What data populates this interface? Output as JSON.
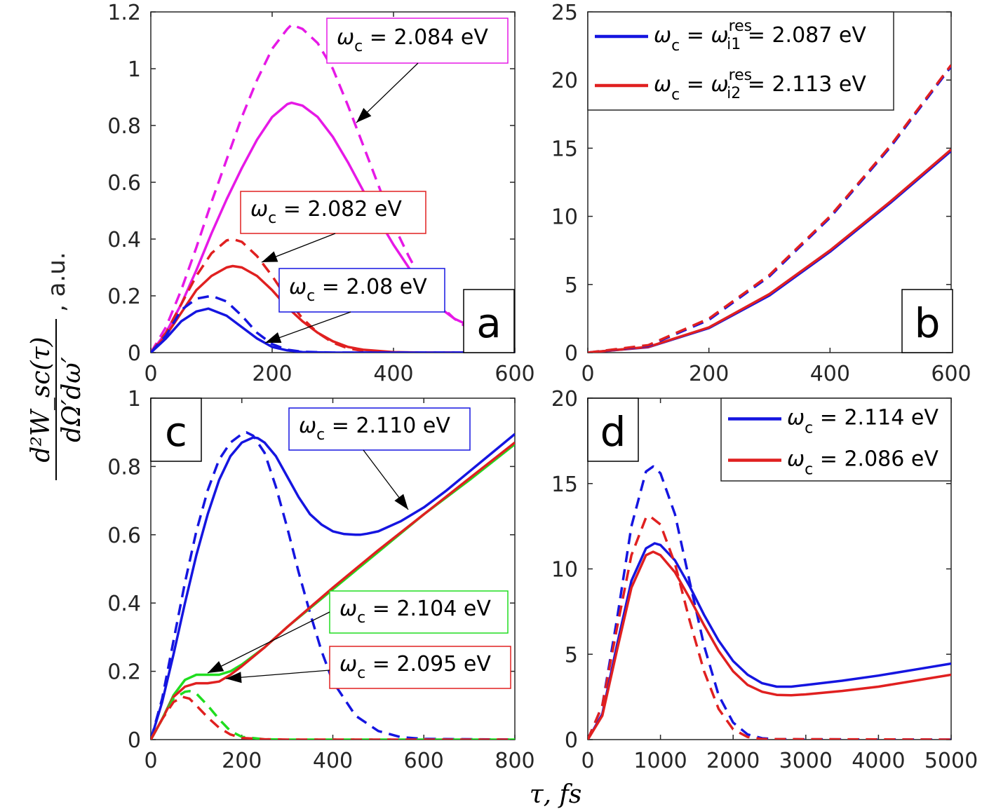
{
  "figure": {
    "xlabel": "τ, fs",
    "ylabel_numerator": "d²W_sc(τ)",
    "ylabel_denominator": "dΩ′dω′",
    "ylabel_suffix": ", a.u."
  },
  "chart_data": [
    {
      "panel": "a",
      "type": "line",
      "xlim": [
        0,
        600
      ],
      "ylim": [
        0,
        1.2
      ],
      "xticks": [
        0,
        200,
        400,
        600
      ],
      "yticks": [
        0,
        0.2,
        0.4,
        0.6,
        0.8,
        1,
        1.2
      ],
      "yticklabels": [
        "0",
        "0.2",
        "0.4",
        "0.6",
        "0.8",
        "1",
        "1.2"
      ],
      "grid": false,
      "series": [
        {
          "label": "ω_c = 2.084 eV",
          "color": "#e619e6",
          "style": "dashed",
          "x": [
            0,
            25,
            50,
            75,
            100,
            125,
            150,
            175,
            200,
            225,
            232,
            250,
            275,
            300,
            325,
            350,
            375,
            400,
            425,
            450,
            475,
            500,
            520
          ],
          "y": [
            0,
            0.09,
            0.22,
            0.37,
            0.53,
            0.68,
            0.83,
            0.96,
            1.07,
            1.14,
            1.155,
            1.14,
            1.09,
            1.0,
            0.87,
            0.73,
            0.59,
            0.45,
            0.34,
            0.24,
            0.17,
            0.12,
            0.09
          ]
        },
        {
          "label": "ω_c = 2.084 eV",
          "color": "#e619e6",
          "style": "solid",
          "x": [
            0,
            25,
            50,
            75,
            100,
            125,
            150,
            175,
            200,
            225,
            232,
            250,
            275,
            300,
            325,
            350,
            375,
            400,
            425,
            450,
            475,
            500,
            520
          ],
          "y": [
            0,
            0.07,
            0.17,
            0.29,
            0.42,
            0.54,
            0.65,
            0.75,
            0.83,
            0.875,
            0.88,
            0.87,
            0.83,
            0.76,
            0.67,
            0.57,
            0.47,
            0.38,
            0.3,
            0.22,
            0.16,
            0.12,
            0.1
          ]
        },
        {
          "label": "ω_c = 2.082 eV",
          "color": "#e02020",
          "style": "dashed",
          "x": [
            0,
            25,
            50,
            75,
            100,
            125,
            135,
            150,
            175,
            200,
            225,
            250,
            275,
            300,
            325,
            350,
            400,
            450,
            500,
            600
          ],
          "y": [
            0,
            0.07,
            0.17,
            0.27,
            0.35,
            0.395,
            0.4,
            0.39,
            0.34,
            0.27,
            0.19,
            0.12,
            0.07,
            0.035,
            0.015,
            0.006,
            0.001,
            0,
            0,
            0
          ]
        },
        {
          "label": "ω_c = 2.082 eV",
          "color": "#e02020",
          "style": "solid",
          "x": [
            0,
            25,
            50,
            75,
            100,
            125,
            135,
            150,
            175,
            200,
            225,
            250,
            275,
            300,
            325,
            350,
            400,
            450,
            500,
            600
          ],
          "y": [
            0,
            0.06,
            0.14,
            0.22,
            0.27,
            0.3,
            0.305,
            0.3,
            0.27,
            0.22,
            0.16,
            0.11,
            0.07,
            0.04,
            0.02,
            0.01,
            0.002,
            0,
            0,
            0
          ]
        },
        {
          "label": "ω_c = 2.08 eV",
          "color": "#1515e0",
          "style": "dashed",
          "x": [
            0,
            25,
            50,
            75,
            100,
            125,
            150,
            175,
            200,
            225,
            250,
            300,
            400,
            600
          ],
          "y": [
            0,
            0.06,
            0.15,
            0.19,
            0.2,
            0.18,
            0.13,
            0.07,
            0.03,
            0.01,
            0.003,
            0,
            0,
            0
          ]
        },
        {
          "label": "ω_c = 2.08 eV",
          "color": "#1515e0",
          "style": "solid",
          "x": [
            0,
            25,
            50,
            75,
            95,
            125,
            150,
            175,
            200,
            225,
            250,
            300,
            400,
            600
          ],
          "y": [
            0,
            0.05,
            0.11,
            0.145,
            0.155,
            0.13,
            0.09,
            0.05,
            0.02,
            0.008,
            0.002,
            0,
            0,
            0
          ]
        }
      ],
      "legend_boxes": [
        {
          "text": "ω_c = 2.084 eV",
          "color": "#e619e6"
        },
        {
          "text": "ω_c = 2.082 eV",
          "color": "#e02020"
        },
        {
          "text": "ω_c = 2.08 eV",
          "color": "#1515e0"
        }
      ]
    },
    {
      "panel": "b",
      "type": "line",
      "xlim": [
        0,
        600
      ],
      "ylim": [
        0,
        25
      ],
      "xticks": [
        0,
        200,
        400,
        600
      ],
      "yticks": [
        0,
        5,
        10,
        15,
        20,
        25
      ],
      "yticklabels": [
        "0",
        "5",
        "10",
        "15",
        "20",
        "25"
      ],
      "grid": false,
      "legend": "top-left",
      "series": [
        {
          "label": "ω_c = ω_i1^res = 2.087 eV",
          "color": "#1515e0",
          "style": "solid",
          "x": [
            0,
            100,
            200,
            300,
            400,
            500,
            600
          ],
          "y": [
            0,
            0.4,
            1.8,
            4.2,
            7.4,
            11.0,
            14.8
          ]
        },
        {
          "label": "ω_c = ω_i2^res = 2.113 eV",
          "color": "#e02020",
          "style": "solid",
          "x": [
            0,
            100,
            200,
            300,
            400,
            500,
            600
          ],
          "y": [
            0,
            0.42,
            1.85,
            4.3,
            7.5,
            11.1,
            14.9
          ]
        },
        {
          "label": "ω_c = ω_i1^res = 2.087 eV",
          "color": "#1515e0",
          "style": "dashed",
          "x": [
            0,
            100,
            200,
            300,
            400,
            500,
            600
          ],
          "y": [
            0,
            0.5,
            2.4,
            5.6,
            9.9,
            15.1,
            21.0
          ]
        },
        {
          "label": "ω_c = ω_i2^res = 2.113 eV",
          "color": "#e02020",
          "style": "dashed",
          "x": [
            0,
            100,
            200,
            300,
            400,
            500,
            600
          ],
          "y": [
            0,
            0.55,
            2.5,
            5.7,
            10.0,
            15.2,
            21.1
          ]
        }
      ],
      "legend_entries": [
        {
          "pre": "ω",
          "sub": "c",
          "mid": " = ω",
          "sup": "res",
          "sub2": "i1",
          "post": " = 2.087 eV",
          "color": "#1515e0"
        },
        {
          "pre": "ω",
          "sub": "c",
          "mid": " = ω",
          "sup": "res",
          "sub2": "i2",
          "post": " = 2.113 eV",
          "color": "#e02020"
        }
      ]
    },
    {
      "panel": "c",
      "type": "line",
      "xlim": [
        0,
        800
      ],
      "ylim": [
        0,
        1
      ],
      "xticks": [
        0,
        200,
        400,
        600,
        800
      ],
      "yticks": [
        0,
        0.2,
        0.4,
        0.6,
        0.8,
        1
      ],
      "yticklabels": [
        "0",
        "0.2",
        "0.4",
        "0.6",
        "0.8",
        "1"
      ],
      "grid": false,
      "series": [
        {
          "label": "ω_c = 2.110 eV",
          "color": "#1515e0",
          "style": "dashed",
          "x": [
            0,
            25,
            50,
            75,
            100,
            125,
            150,
            175,
            200,
            210,
            225,
            250,
            275,
            300,
            325,
            350,
            375,
            400,
            450,
            500,
            550,
            600,
            800
          ],
          "y": [
            0,
            0.12,
            0.29,
            0.46,
            0.61,
            0.73,
            0.82,
            0.87,
            0.895,
            0.9,
            0.89,
            0.84,
            0.74,
            0.62,
            0.49,
            0.37,
            0.26,
            0.17,
            0.07,
            0.025,
            0.007,
            0.002,
            0
          ]
        },
        {
          "label": "ω_c = 2.110 eV",
          "color": "#1515e0",
          "style": "solid",
          "x": [
            0,
            25,
            50,
            75,
            100,
            125,
            150,
            175,
            200,
            225,
            235,
            250,
            275,
            300,
            325,
            350,
            375,
            400,
            425,
            450,
            460,
            475,
            500,
            550,
            600,
            650,
            700,
            750,
            800
          ],
          "y": [
            0,
            0.11,
            0.25,
            0.4,
            0.54,
            0.66,
            0.76,
            0.83,
            0.87,
            0.885,
            0.883,
            0.87,
            0.83,
            0.77,
            0.71,
            0.66,
            0.63,
            0.61,
            0.602,
            0.6,
            0.6,
            0.603,
            0.61,
            0.64,
            0.68,
            0.73,
            0.785,
            0.84,
            0.895
          ]
        },
        {
          "label": "ω_c = 2.104 eV",
          "color": "#20dd20",
          "style": "solid",
          "x": [
            0,
            25,
            50,
            75,
            100,
            125,
            150,
            175,
            200,
            250,
            300,
            400,
            500,
            600,
            700,
            800
          ],
          "y": [
            0,
            0.06,
            0.13,
            0.175,
            0.19,
            0.19,
            0.19,
            0.2,
            0.22,
            0.27,
            0.33,
            0.44,
            0.55,
            0.66,
            0.76,
            0.865
          ]
        },
        {
          "label": "ω_c = 2.095 eV",
          "color": "#e02020",
          "style": "solid",
          "x": [
            0,
            25,
            50,
            75,
            100,
            125,
            150,
            175,
            200,
            250,
            300,
            400,
            500,
            600,
            700,
            800
          ],
          "y": [
            0,
            0.06,
            0.125,
            0.155,
            0.165,
            0.165,
            0.17,
            0.19,
            0.215,
            0.27,
            0.33,
            0.445,
            0.555,
            0.66,
            0.765,
            0.87
          ]
        },
        {
          "label": "ω_c = 2.104 eV",
          "color": "#20dd20",
          "style": "dashed",
          "x": [
            0,
            25,
            50,
            75,
            85,
            100,
            125,
            150,
            175,
            200,
            250,
            300,
            800
          ],
          "y": [
            0,
            0.06,
            0.12,
            0.14,
            0.142,
            0.135,
            0.1,
            0.06,
            0.025,
            0.008,
            0.001,
            0,
            0
          ]
        },
        {
          "label": "ω_c = 2.095 eV",
          "color": "#e02020",
          "style": "dashed",
          "x": [
            0,
            25,
            50,
            70,
            85,
            100,
            125,
            150,
            175,
            200,
            250,
            300,
            800
          ],
          "y": [
            0,
            0.06,
            0.11,
            0.125,
            0.12,
            0.1,
            0.065,
            0.035,
            0.015,
            0.005,
            0.001,
            0,
            0
          ]
        }
      ],
      "legend_boxes": [
        {
          "text": "ω_c = 2.110 eV",
          "color": "#1515e0"
        },
        {
          "text": "ω_c = 2.104 eV",
          "color": "#20dd20"
        },
        {
          "text": "ω_c = 2.095 eV",
          "color": "#e02020"
        }
      ]
    },
    {
      "panel": "d",
      "type": "line",
      "xlim": [
        0,
        5000
      ],
      "ylim": [
        0,
        20
      ],
      "xticks": [
        0,
        1000,
        2000,
        3000,
        4000,
        5000
      ],
      "yticks": [
        0,
        5,
        10,
        15,
        20
      ],
      "yticklabels": [
        "0",
        "5",
        "10",
        "15",
        "20"
      ],
      "grid": false,
      "legend": "top-right",
      "series": [
        {
          "label": "ω_c = 2.114 eV",
          "color": "#1515e0",
          "style": "dashed",
          "x": [
            0,
            200,
            400,
            600,
            800,
            900,
            1000,
            1200,
            1400,
            1600,
            1800,
            2000,
            2200,
            2400,
            2600,
            5000
          ],
          "y": [
            0,
            2.0,
            7.0,
            12.5,
            15.7,
            16.0,
            15.6,
            13.2,
            9.3,
            5.5,
            2.6,
            1.0,
            0.3,
            0.08,
            0.02,
            0
          ]
        },
        {
          "label": "ω_c = 2.114 eV",
          "color": "#1515e0",
          "style": "solid",
          "x": [
            0,
            200,
            400,
            600,
            800,
            920,
            1000,
            1200,
            1400,
            1600,
            1800,
            2000,
            2200,
            2400,
            2600,
            2800,
            3000,
            3500,
            4000,
            4500,
            5000
          ],
          "y": [
            0,
            1.5,
            5.5,
            9.3,
            11.2,
            11.5,
            11.4,
            10.5,
            9.0,
            7.3,
            5.8,
            4.6,
            3.8,
            3.3,
            3.1,
            3.1,
            3.2,
            3.45,
            3.75,
            4.1,
            4.45
          ]
        },
        {
          "label": "ω_c = 2.086 eV",
          "color": "#e02020",
          "style": "dashed",
          "x": [
            0,
            200,
            400,
            600,
            800,
            850,
            1000,
            1200,
            1400,
            1600,
            1800,
            2000,
            2200,
            2400,
            5000
          ],
          "y": [
            0,
            2.0,
            6.5,
            10.8,
            13.0,
            13.1,
            12.6,
            10.3,
            7.0,
            4.0,
            1.8,
            0.6,
            0.15,
            0.03,
            0
          ]
        },
        {
          "label": "ω_c = 2.086 eV",
          "color": "#e02020",
          "style": "solid",
          "x": [
            0,
            200,
            400,
            600,
            800,
            900,
            1000,
            1200,
            1400,
            1600,
            1800,
            2000,
            2200,
            2400,
            2600,
            2800,
            3000,
            3500,
            4000,
            4500,
            5000
          ],
          "y": [
            0,
            1.4,
            5.2,
            8.9,
            10.8,
            11.0,
            10.8,
            9.8,
            8.3,
            6.7,
            5.2,
            4.0,
            3.2,
            2.8,
            2.62,
            2.6,
            2.65,
            2.85,
            3.1,
            3.45,
            3.8
          ]
        }
      ],
      "legend_entries": [
        {
          "pre": "ω",
          "sub": "c",
          "mid": "",
          "sup": "",
          "sub2": "",
          "post": " = 2.114 eV",
          "color": "#1515e0"
        },
        {
          "pre": "ω",
          "sub": "c",
          "mid": "",
          "sup": "",
          "sub2": "",
          "post": " = 2.086 eV",
          "color": "#e02020"
        }
      ]
    }
  ],
  "panel_labels": [
    "a",
    "b",
    "c",
    "d"
  ],
  "box_texts": {
    "a0_pre": "ω",
    "a0_sub": "c",
    "a0_post": " = 2.084 eV",
    "a1_pre": "ω",
    "a1_sub": "c",
    "a1_post": " = 2.082 eV",
    "a2_pre": "ω",
    "a2_sub": "c",
    "a2_post": " = 2.08 eV",
    "c0_pre": "ω",
    "c0_sub": "c",
    "c0_post": " = 2.110 eV",
    "c1_pre": "ω",
    "c1_sub": "c",
    "c1_post": " = 2.104 eV",
    "c2_pre": "ω",
    "c2_sub": "c",
    "c2_post": " = 2.095 eV"
  }
}
